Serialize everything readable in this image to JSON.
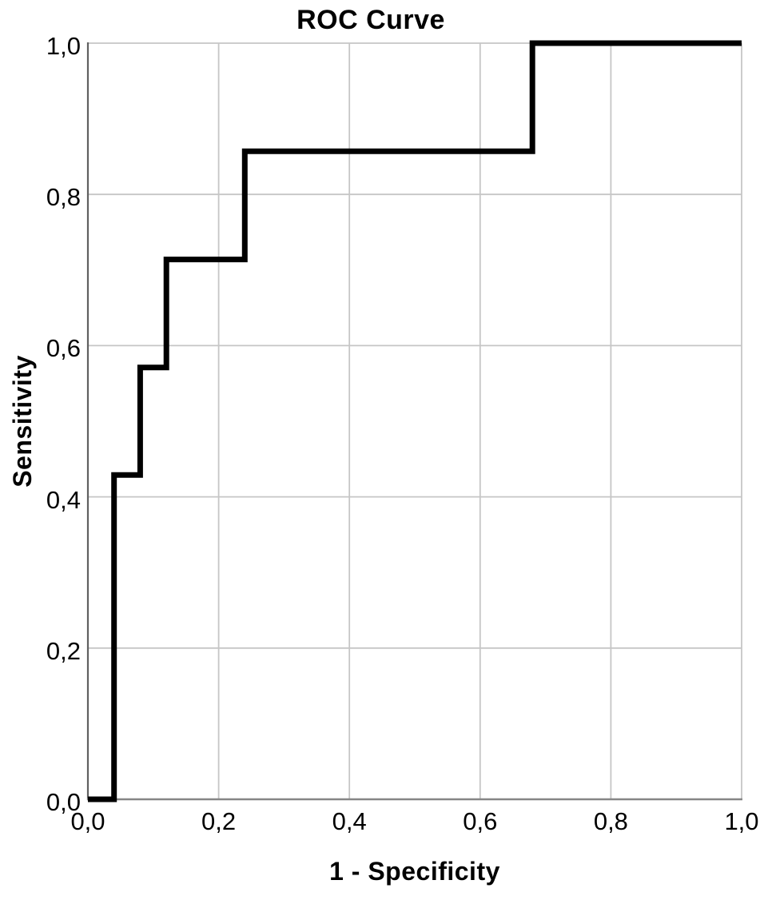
{
  "chart_data": {
    "type": "line",
    "subtype": "roc-step-curve",
    "title": "ROC Curve",
    "xlabel": "1 - Specificity",
    "ylabel": "Sensitivity",
    "xlim": [
      0.0,
      1.0
    ],
    "ylim": [
      0.0,
      1.0
    ],
    "grid": true,
    "decimal_separator": ",",
    "legend": "none",
    "x_axis": {
      "tick_values": [
        0.0,
        0.2,
        0.4,
        0.6,
        0.8,
        1.0
      ],
      "tick_labels": [
        "0,0",
        "0,2",
        "0,4",
        "0,6",
        "0,8",
        "1,0"
      ]
    },
    "y_axis": {
      "tick_values": [
        0.0,
        0.2,
        0.4,
        0.6,
        0.8,
        1.0
      ],
      "tick_labels": [
        "0,0",
        "0,2",
        "0,4",
        "0,6",
        "0,8",
        "1,0"
      ]
    },
    "series": [
      {
        "name": "ROC curve",
        "color": "#000000",
        "line_width": 7,
        "points": [
          [
            0.0,
            0.0
          ],
          [
            0.04,
            0.0
          ],
          [
            0.04,
            0.429
          ],
          [
            0.08,
            0.429
          ],
          [
            0.08,
            0.571
          ],
          [
            0.12,
            0.571
          ],
          [
            0.12,
            0.714
          ],
          [
            0.24,
            0.714
          ],
          [
            0.24,
            0.857
          ],
          [
            0.68,
            0.857
          ],
          [
            0.68,
            1.0
          ],
          [
            1.0,
            1.0
          ]
        ]
      }
    ],
    "colors": {
      "curve": "#000000",
      "gridline": "#c6c6c6",
      "axis_left": "#606060",
      "axis_bottom": "#868686",
      "background": "#ffffff",
      "text": "#000000"
    }
  }
}
